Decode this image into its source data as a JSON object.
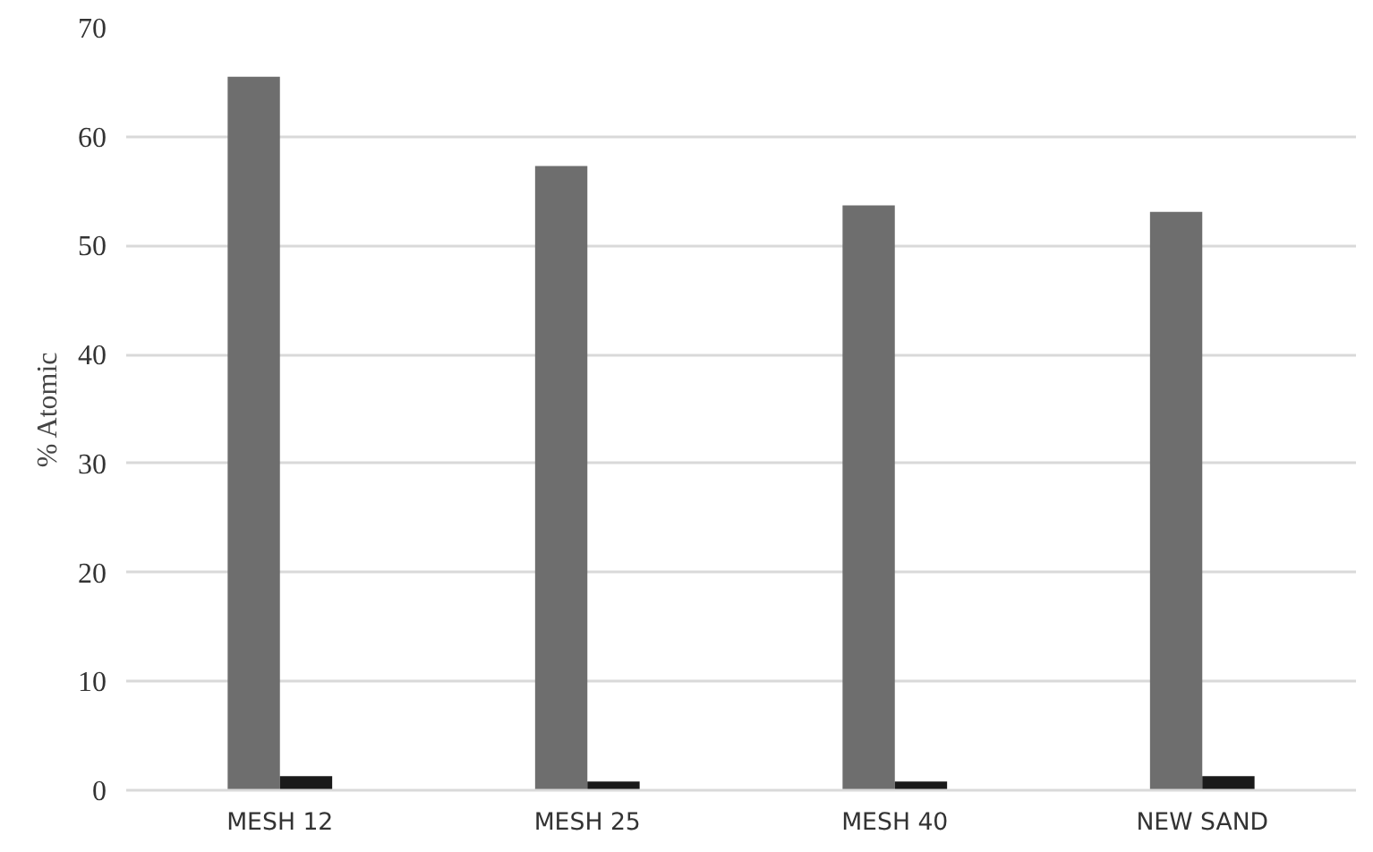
{
  "chart_data": {
    "type": "bar",
    "ylabel": "% Atomic",
    "categories": [
      "MESH 12",
      "MESH 25",
      "MESH 40",
      "NEW SAND"
    ],
    "series": [
      {
        "color": "#6e6e6e",
        "values": [
          65.5,
          57.3,
          53.7,
          53.1
        ]
      },
      {
        "color": "#1a1a1a",
        "values": [
          1.3,
          0.8,
          0.8,
          1.3
        ]
      }
    ],
    "ylim": [
      0,
      70
    ],
    "yticks": [
      0,
      10,
      20,
      30,
      40,
      50,
      60,
      70
    ],
    "grid": "y"
  }
}
